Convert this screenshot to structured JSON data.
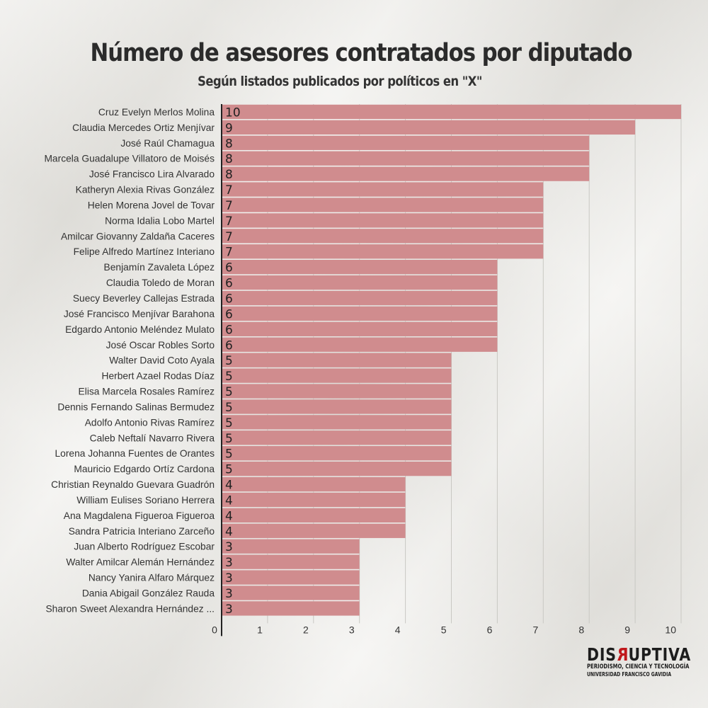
{
  "chart_data": {
    "type": "bar",
    "orientation": "horizontal",
    "title": "Número de asesores contratados por diputado",
    "subtitle": "Según listados publicados por políticos en \"X\"",
    "categories": [
      "Cruz Evelyn Merlos Molina",
      "Claudia Mercedes Ortiz Menjívar",
      "José Raúl Chamagua",
      "Marcela Guadalupe Villatoro de Moisés",
      "José Francisco Lira Alvarado",
      "Katheryn Alexia Rivas González",
      "Helen Morena Jovel de Tovar",
      "Norma Idalia Lobo Martel",
      "Amilcar Giovanny Zaldaña Caceres",
      "Felipe Alfredo Martínez Interiano",
      "Benjamín Zavaleta López",
      "Claudia Toledo de Moran",
      "Suecy Beverley Callejas Estrada",
      "José Francisco Menjívar Barahona",
      "Edgardo Antonio Meléndez Mulato",
      "José Oscar Robles Sorto",
      "Walter David Coto Ayala",
      "Herbert Azael Rodas Díaz",
      "Elisa Marcela Rosales Ramírez",
      "Dennis Fernando Salinas Bermudez",
      "Adolfo Antonio Rivas Ramírez",
      "Caleb Neftalí Navarro Rivera",
      "Lorena Johanna Fuentes de Orantes",
      "Mauricio Edgardo Ortíz Cardona",
      "Christian Reynaldo Guevara Guadrón",
      "William Eulises Soriano Herrera",
      "Ana Magdalena Figueroa Figueroa",
      "Sandra Patricia Interiano Zarceño",
      "Juan Alberto Rodríguez Escobar",
      "Walter Amilcar Alemán Hernández",
      "Nancy Yanira Alfaro Márquez",
      "Dania Abigail González Rauda",
      "Sharon Sweet Alexandra Hernández ..."
    ],
    "values": [
      10,
      9,
      8,
      8,
      8,
      7,
      7,
      7,
      7,
      7,
      6,
      6,
      6,
      6,
      6,
      6,
      5,
      5,
      5,
      5,
      5,
      5,
      5,
      5,
      4,
      4,
      4,
      4,
      3,
      3,
      3,
      3,
      3
    ],
    "xlim": [
      0,
      10
    ],
    "xticks": [
      "0",
      "1",
      "2",
      "3",
      "4",
      "5",
      "6",
      "7",
      "8",
      "9",
      "10"
    ],
    "grid": "vertical",
    "bar_color": "#d08c8e",
    "data_labels": "inside-start"
  },
  "logo": {
    "word_before": "DIS",
    "word_r": "R",
    "word_after": "UPTIVA",
    "line1": "PERIODISMO, CIENCIA Y TECNOLOGÍA",
    "line2": "UNIVERSIDAD FRANCISCO GAVIDIA"
  }
}
